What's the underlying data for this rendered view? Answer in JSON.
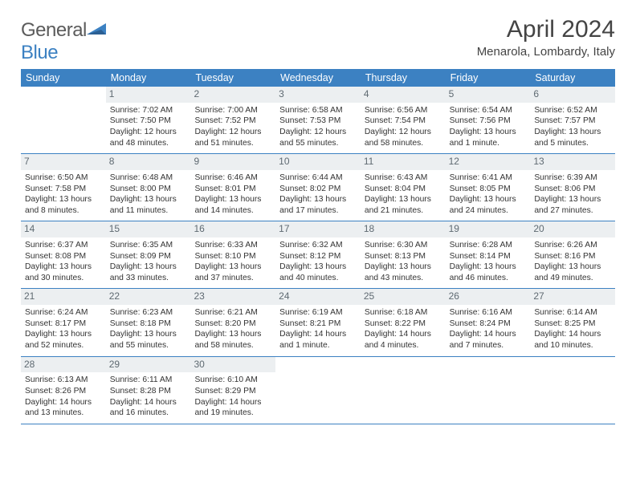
{
  "brand": {
    "name_a": "General",
    "name_b": "Blue"
  },
  "title": "April 2024",
  "location": "Menarola, Lombardy, Italy",
  "colors": {
    "accent": "#3c81c2",
    "daynum_bg": "#eceff1",
    "daynum_fg": "#5f6a72",
    "text": "#333333",
    "bg": "#ffffff"
  },
  "weekdays": [
    "Sunday",
    "Monday",
    "Tuesday",
    "Wednesday",
    "Thursday",
    "Friday",
    "Saturday"
  ],
  "weeks": [
    [
      {
        "blank": true
      },
      {
        "n": "1",
        "sr": "7:02 AM",
        "ss": "7:50 PM",
        "dl": "12 hours and 48 minutes."
      },
      {
        "n": "2",
        "sr": "7:00 AM",
        "ss": "7:52 PM",
        "dl": "12 hours and 51 minutes."
      },
      {
        "n": "3",
        "sr": "6:58 AM",
        "ss": "7:53 PM",
        "dl": "12 hours and 55 minutes."
      },
      {
        "n": "4",
        "sr": "6:56 AM",
        "ss": "7:54 PM",
        "dl": "12 hours and 58 minutes."
      },
      {
        "n": "5",
        "sr": "6:54 AM",
        "ss": "7:56 PM",
        "dl": "13 hours and 1 minute."
      },
      {
        "n": "6",
        "sr": "6:52 AM",
        "ss": "7:57 PM",
        "dl": "13 hours and 5 minutes."
      }
    ],
    [
      {
        "n": "7",
        "sr": "6:50 AM",
        "ss": "7:58 PM",
        "dl": "13 hours and 8 minutes."
      },
      {
        "n": "8",
        "sr": "6:48 AM",
        "ss": "8:00 PM",
        "dl": "13 hours and 11 minutes."
      },
      {
        "n": "9",
        "sr": "6:46 AM",
        "ss": "8:01 PM",
        "dl": "13 hours and 14 minutes."
      },
      {
        "n": "10",
        "sr": "6:44 AM",
        "ss": "8:02 PM",
        "dl": "13 hours and 17 minutes."
      },
      {
        "n": "11",
        "sr": "6:43 AM",
        "ss": "8:04 PM",
        "dl": "13 hours and 21 minutes."
      },
      {
        "n": "12",
        "sr": "6:41 AM",
        "ss": "8:05 PM",
        "dl": "13 hours and 24 minutes."
      },
      {
        "n": "13",
        "sr": "6:39 AM",
        "ss": "8:06 PM",
        "dl": "13 hours and 27 minutes."
      }
    ],
    [
      {
        "n": "14",
        "sr": "6:37 AM",
        "ss": "8:08 PM",
        "dl": "13 hours and 30 minutes."
      },
      {
        "n": "15",
        "sr": "6:35 AM",
        "ss": "8:09 PM",
        "dl": "13 hours and 33 minutes."
      },
      {
        "n": "16",
        "sr": "6:33 AM",
        "ss": "8:10 PM",
        "dl": "13 hours and 37 minutes."
      },
      {
        "n": "17",
        "sr": "6:32 AM",
        "ss": "8:12 PM",
        "dl": "13 hours and 40 minutes."
      },
      {
        "n": "18",
        "sr": "6:30 AM",
        "ss": "8:13 PM",
        "dl": "13 hours and 43 minutes."
      },
      {
        "n": "19",
        "sr": "6:28 AM",
        "ss": "8:14 PM",
        "dl": "13 hours and 46 minutes."
      },
      {
        "n": "20",
        "sr": "6:26 AM",
        "ss": "8:16 PM",
        "dl": "13 hours and 49 minutes."
      }
    ],
    [
      {
        "n": "21",
        "sr": "6:24 AM",
        "ss": "8:17 PM",
        "dl": "13 hours and 52 minutes."
      },
      {
        "n": "22",
        "sr": "6:23 AM",
        "ss": "8:18 PM",
        "dl": "13 hours and 55 minutes."
      },
      {
        "n": "23",
        "sr": "6:21 AM",
        "ss": "8:20 PM",
        "dl": "13 hours and 58 minutes."
      },
      {
        "n": "24",
        "sr": "6:19 AM",
        "ss": "8:21 PM",
        "dl": "14 hours and 1 minute."
      },
      {
        "n": "25",
        "sr": "6:18 AM",
        "ss": "8:22 PM",
        "dl": "14 hours and 4 minutes."
      },
      {
        "n": "26",
        "sr": "6:16 AM",
        "ss": "8:24 PM",
        "dl": "14 hours and 7 minutes."
      },
      {
        "n": "27",
        "sr": "6:14 AM",
        "ss": "8:25 PM",
        "dl": "14 hours and 10 minutes."
      }
    ],
    [
      {
        "n": "28",
        "sr": "6:13 AM",
        "ss": "8:26 PM",
        "dl": "14 hours and 13 minutes."
      },
      {
        "n": "29",
        "sr": "6:11 AM",
        "ss": "8:28 PM",
        "dl": "14 hours and 16 minutes."
      },
      {
        "n": "30",
        "sr": "6:10 AM",
        "ss": "8:29 PM",
        "dl": "14 hours and 19 minutes."
      },
      {
        "blank": true
      },
      {
        "blank": true
      },
      {
        "blank": true
      },
      {
        "blank": true
      }
    ]
  ],
  "labels": {
    "sunrise": "Sunrise:",
    "sunset": "Sunset:",
    "daylight": "Daylight:"
  }
}
